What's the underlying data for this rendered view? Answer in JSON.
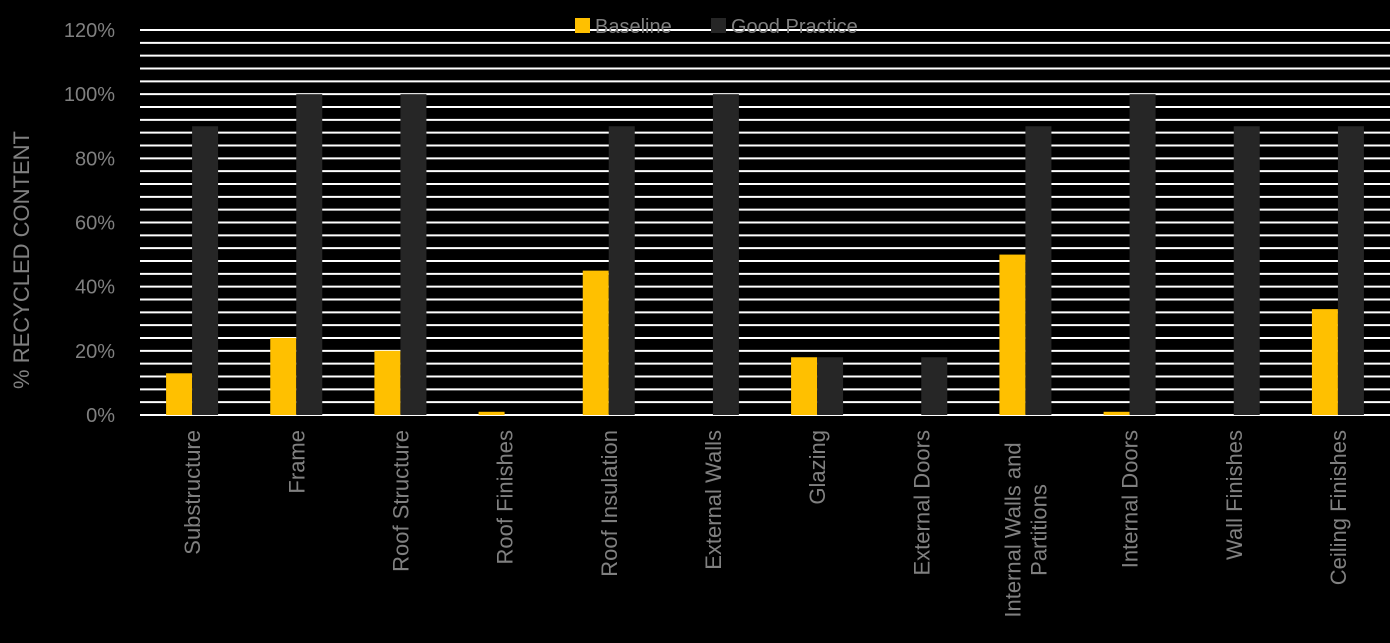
{
  "chart_data": {
    "type": "bar",
    "title": "",
    "xlabel": "",
    "ylabel": "% RECYCLED CONTENT",
    "ylim": [
      0,
      120
    ],
    "y_tick_values": [
      0,
      20,
      40,
      60,
      80,
      100,
      120
    ],
    "y_tick_labels": [
      "0%",
      "20%",
      "40%",
      "60%",
      "80%",
      "100%",
      "120%"
    ],
    "grid": true,
    "legend_position": "top-center",
    "categories": [
      "Substructure",
      "Frame",
      "Roof Structure",
      "Roof Finishes",
      "Roof Insulation",
      "External Walls",
      "Glazing",
      "External Doors",
      "Internal Walls and Partitions",
      "Internal Doors",
      "Wall Finishes",
      "Ceiling Finishes"
    ],
    "category_lines": [
      [
        "Substructure"
      ],
      [
        "Frame"
      ],
      [
        "Roof Structure"
      ],
      [
        "Roof Finishes"
      ],
      [
        "Roof Insulation"
      ],
      [
        "External Walls"
      ],
      [
        "Glazing"
      ],
      [
        "External Doors"
      ],
      [
        "Internal Walls and",
        "Partitions"
      ],
      [
        "Internal Doors"
      ],
      [
        "Wall Finishes"
      ],
      [
        "Ceiling Finishes"
      ]
    ],
    "series": [
      {
        "name": "Baseline",
        "color": "#FFC000",
        "values": [
          13,
          24,
          20,
          1,
          45,
          0,
          18,
          0,
          50,
          1,
          0,
          33
        ]
      },
      {
        "name": "Good Practice",
        "color": "#262626",
        "values": [
          90,
          100,
          100,
          0,
          90,
          100,
          18,
          18,
          90,
          100,
          90,
          90
        ]
      }
    ]
  }
}
